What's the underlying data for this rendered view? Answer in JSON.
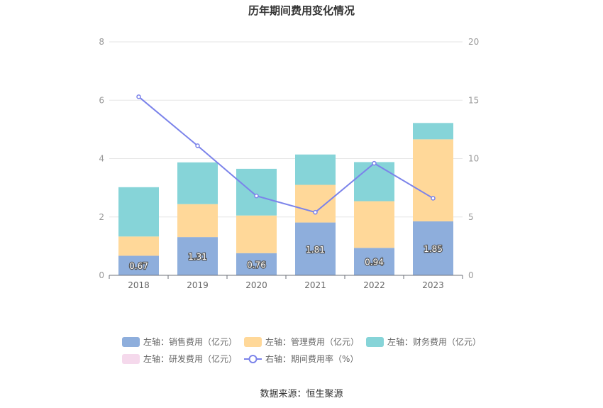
{
  "chart_data": {
    "type": "bar",
    "stacked": true,
    "title": "历年期间费用变化情况",
    "categories": [
      "2018",
      "2019",
      "2020",
      "2021",
      "2022",
      "2023"
    ],
    "left_axis": {
      "ylim": [
        0,
        8
      ],
      "ticks": [
        "0",
        "2",
        "4",
        "6",
        "8"
      ]
    },
    "right_axis": {
      "ylim": [
        0,
        20
      ],
      "ticks": [
        "0",
        "5",
        "10",
        "15",
        "20"
      ]
    },
    "series": [
      {
        "name": "左轴：销售费用（亿元）",
        "type": "bar",
        "axis": "left",
        "color": "#8eaedc",
        "values": [
          0.67,
          1.31,
          0.76,
          1.81,
          0.94,
          1.85
        ],
        "labels": [
          "0.67",
          "1.31",
          "0.76",
          "1.81",
          "0.94",
          "1.85"
        ]
      },
      {
        "name": "左轴：管理费用（亿元）",
        "type": "bar",
        "axis": "left",
        "color": "#ffd899",
        "values": [
          0.66,
          1.13,
          1.29,
          1.29,
          1.6,
          2.81
        ]
      },
      {
        "name": "左轴：财务费用（亿元）",
        "type": "bar",
        "axis": "left",
        "color": "#86d4d8",
        "values": [
          1.69,
          1.43,
          1.6,
          1.04,
          1.34,
          0.56
        ]
      },
      {
        "name": "左轴：研发费用（亿元）",
        "type": "bar",
        "axis": "left",
        "color": "#f5d9ec",
        "values": [
          0,
          0,
          0,
          0,
          0,
          0
        ]
      },
      {
        "name": "右轴：期间费用率（%）",
        "type": "line",
        "axis": "right",
        "color": "#7b83ea",
        "values": [
          15.3,
          11.1,
          6.8,
          5.4,
          9.6,
          6.6
        ]
      }
    ],
    "legend_position": "bottom",
    "grid": true
  },
  "source_label": "数据来源：恒生聚源"
}
